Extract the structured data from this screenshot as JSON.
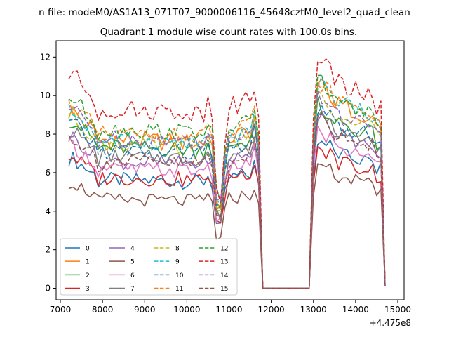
{
  "chart_data": {
    "type": "line",
    "suptitle": "n file: modeM0/AS1A13_071T07_9000006116_45648cztM0_level2_quad_clean",
    "title": "Quadrant 1 module wise count rates with 100.0s bins.",
    "xlabel": "",
    "ylabel": "",
    "x_offset_label": "+4.475e8",
    "xlim": [
      6900,
      15150
    ],
    "ylim": [
      -0.6,
      12.85
    ],
    "x_ticks": [
      7000,
      8000,
      9000,
      10000,
      11000,
      12000,
      13000,
      14000,
      15000
    ],
    "x_tick_labels": [
      "7000",
      "8000",
      "9000",
      "10000",
      "11000",
      "12000",
      "13000",
      "14000",
      "15000"
    ],
    "y_ticks": [
      0,
      2,
      4,
      6,
      8,
      10,
      12
    ],
    "y_tick_labels": [
      "0",
      "2",
      "4",
      "6",
      "8",
      "10",
      "12"
    ],
    "legend_location": "lower-left",
    "x_start": 7200,
    "x_step": 100,
    "gap_start": 11700,
    "gap_end": 12900,
    "x_end": 14700,
    "series": [
      {
        "name": "0",
        "color": "#1f77b4",
        "dash": "solid",
        "base1": 6.0,
        "base2": 7.0,
        "amp": 0.4
      },
      {
        "name": "1",
        "color": "#ff7f0e",
        "dash": "solid",
        "base1": 8.2,
        "base2": 9.6,
        "amp": 0.5
      },
      {
        "name": "2",
        "color": "#2ca02c",
        "dash": "solid",
        "base1": 7.8,
        "base2": 8.6,
        "amp": 0.45
      },
      {
        "name": "3",
        "color": "#d62728",
        "dash": "solid",
        "base1": 6.1,
        "base2": 6.6,
        "amp": 0.4
      },
      {
        "name": "4",
        "color": "#9467bd",
        "dash": "solid",
        "base1": 7.0,
        "base2": 8.0,
        "amp": 0.4
      },
      {
        "name": "5",
        "color": "#8c564b",
        "dash": "solid",
        "base1": 4.9,
        "base2": 5.8,
        "amp": 0.35
      },
      {
        "name": "6",
        "color": "#e377c2",
        "dash": "solid",
        "base1": 6.6,
        "base2": 7.4,
        "amp": 0.4
      },
      {
        "name": "7",
        "color": "#7f7f7f",
        "dash": "solid",
        "base1": 7.3,
        "base2": 8.2,
        "amp": 0.4
      },
      {
        "name": "8",
        "color": "#bcbd22",
        "dash": "dashed",
        "base1": 8.0,
        "base2": 9.0,
        "amp": 0.45
      },
      {
        "name": "9",
        "color": "#17becf",
        "dash": "dashed",
        "base1": 8.2,
        "base2": 9.8,
        "amp": 0.45
      },
      {
        "name": "10",
        "color": "#1f77b4",
        "dash": "dashed",
        "base1": 7.6,
        "base2": 8.5,
        "amp": 0.45
      },
      {
        "name": "11",
        "color": "#ff7f0e",
        "dash": "dashed",
        "base1": 8.5,
        "base2": 9.7,
        "amp": 0.45
      },
      {
        "name": "12",
        "color": "#2ca02c",
        "dash": "dashed",
        "base1": 8.8,
        "base2": 9.8,
        "amp": 0.45
      },
      {
        "name": "13",
        "color": "#d62728",
        "dash": "dashed",
        "base1": 9.9,
        "base2": 10.7,
        "amp": 0.5
      },
      {
        "name": "14",
        "color": "#9467bd",
        "dash": "dashed",
        "base1": 8.3,
        "base2": 9.0,
        "amp": 0.45
      },
      {
        "name": "15",
        "color": "#8c564b",
        "dash": "dashed",
        "base1": 7.0,
        "base2": 8.0,
        "amp": 0.45
      }
    ]
  }
}
